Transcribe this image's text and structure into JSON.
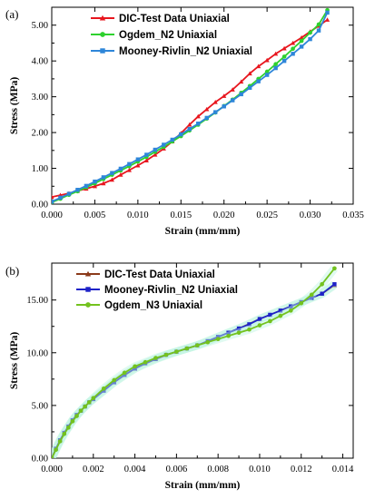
{
  "chart_data": [
    {
      "type": "line",
      "panel_label": "(a)",
      "xlabel": "Strain (mm/mm)",
      "ylabel": "Stress (MPa)",
      "xlim": [
        0,
        0.035
      ],
      "ylim": [
        0,
        5.5
      ],
      "xticks": [
        0,
        0.005,
        0.01,
        0.015,
        0.02,
        0.025,
        0.03,
        0.035
      ],
      "xtick_labels": [
        "0.000",
        "0.005",
        "0.010",
        "0.015",
        "0.020",
        "0.025",
        "0.030",
        "0.035"
      ],
      "yticks": [
        0,
        1,
        2,
        3,
        4,
        5
      ],
      "ytick_labels": [
        "0.00",
        "1.00",
        "2.00",
        "3.00",
        "4.00",
        "5.00"
      ],
      "legend_position": "top-left",
      "grid": false,
      "series": [
        {
          "name": "DIC-Test Data Uniaxial",
          "color": "#e8161e",
          "marker": "triangle",
          "x": [
            0.0,
            0.001,
            0.002,
            0.003,
            0.004,
            0.005,
            0.006,
            0.007,
            0.008,
            0.009,
            0.01,
            0.011,
            0.012,
            0.013,
            0.014,
            0.015,
            0.016,
            0.017,
            0.018,
            0.019,
            0.02,
            0.021,
            0.022,
            0.023,
            0.024,
            0.025,
            0.026,
            0.027,
            0.028,
            0.029,
            0.03,
            0.031,
            0.032
          ],
          "y": [
            0.2,
            0.25,
            0.3,
            0.37,
            0.43,
            0.5,
            0.58,
            0.68,
            0.82,
            0.95,
            1.08,
            1.22,
            1.38,
            1.55,
            1.75,
            1.98,
            2.22,
            2.45,
            2.65,
            2.85,
            3.02,
            3.2,
            3.42,
            3.65,
            3.85,
            4.02,
            4.2,
            4.35,
            4.5,
            4.65,
            4.82,
            4.98,
            5.15
          ]
        },
        {
          "name": "Ogdem_N2 Uniaxial",
          "color": "#2ed12e",
          "marker": "circle",
          "x": [
            0.0,
            0.001,
            0.002,
            0.003,
            0.004,
            0.005,
            0.006,
            0.007,
            0.008,
            0.009,
            0.01,
            0.011,
            0.012,
            0.013,
            0.014,
            0.015,
            0.016,
            0.017,
            0.018,
            0.019,
            0.02,
            0.021,
            0.022,
            0.023,
            0.024,
            0.025,
            0.026,
            0.027,
            0.028,
            0.029,
            0.03,
            0.031,
            0.032
          ],
          "y": [
            0.05,
            0.15,
            0.26,
            0.36,
            0.47,
            0.58,
            0.7,
            0.82,
            0.94,
            1.06,
            1.19,
            1.32,
            1.46,
            1.6,
            1.75,
            1.9,
            2.06,
            2.22,
            2.39,
            2.56,
            2.74,
            2.92,
            3.11,
            3.3,
            3.5,
            3.7,
            3.91,
            4.12,
            4.34,
            4.56,
            4.79,
            5.02,
            5.42
          ]
        },
        {
          "name": "Mooney-Rivlin_N2 Uniaxial",
          "color": "#2e86d9",
          "marker": "square",
          "x": [
            0.0,
            0.001,
            0.002,
            0.003,
            0.004,
            0.005,
            0.006,
            0.007,
            0.008,
            0.009,
            0.01,
            0.011,
            0.012,
            0.013,
            0.014,
            0.015,
            0.016,
            0.017,
            0.018,
            0.019,
            0.02,
            0.021,
            0.022,
            0.023,
            0.024,
            0.025,
            0.026,
            0.027,
            0.028,
            0.029,
            0.03,
            0.031,
            0.032
          ],
          "y": [
            0.07,
            0.18,
            0.29,
            0.4,
            0.51,
            0.63,
            0.75,
            0.87,
            0.99,
            1.12,
            1.25,
            1.38,
            1.52,
            1.66,
            1.8,
            1.95,
            2.1,
            2.25,
            2.41,
            2.57,
            2.73,
            2.9,
            3.07,
            3.25,
            3.43,
            3.61,
            3.8,
            4.0,
            4.2,
            4.4,
            4.61,
            4.85,
            5.35
          ]
        }
      ]
    },
    {
      "type": "line",
      "panel_label": "(b)",
      "xlabel": "Strain (mm/mm)",
      "ylabel": "Stress (MPa)",
      "xlim": [
        0,
        0.0145
      ],
      "ylim": [
        0,
        18.5
      ],
      "xticks": [
        0,
        0.002,
        0.004,
        0.006,
        0.008,
        0.01,
        0.012,
        0.014
      ],
      "xtick_labels": [
        "0.000",
        "0.002",
        "0.004",
        "0.006",
        "0.008",
        "0.010",
        "0.012",
        "0.014"
      ],
      "yticks": [
        0,
        5,
        10,
        15
      ],
      "ytick_labels": [
        "0.00",
        "5.00",
        "10.00",
        "15.00"
      ],
      "legend_position": "top-left",
      "grid": false,
      "series": [
        {
          "name": "DIC-Test Data Uniaxial",
          "color": "#8b3a1a",
          "marker": "triangle",
          "x": [
            0.0,
            0.0002,
            0.0004,
            0.0006,
            0.0008,
            0.001,
            0.0012,
            0.0014,
            0.0016,
            0.0018,
            0.002,
            0.003,
            0.004,
            0.005,
            0.006,
            0.007,
            0.008,
            0.009,
            0.01,
            0.011,
            0.012,
            0.013,
            0.0136
          ],
          "y": [
            0.0,
            0.9,
            1.7,
            2.4,
            3.0,
            3.6,
            4.1,
            4.5,
            4.9,
            5.3,
            5.6,
            7.2,
            8.5,
            9.4,
            10.1,
            10.7,
            11.5,
            12.3,
            13.2,
            14.0,
            14.8,
            15.6,
            16.4
          ]
        },
        {
          "name": "Mooney-Rivlin_N2 Uniaxial",
          "color": "#1e22c8",
          "marker": "square",
          "x": [
            0.0,
            0.0002,
            0.0004,
            0.0006,
            0.0008,
            0.001,
            0.0012,
            0.0014,
            0.0016,
            0.0018,
            0.002,
            0.0025,
            0.003,
            0.0035,
            0.004,
            0.0045,
            0.005,
            0.0055,
            0.006,
            0.0065,
            0.007,
            0.0075,
            0.008,
            0.0085,
            0.009,
            0.0095,
            0.01,
            0.0105,
            0.011,
            0.0115,
            0.012,
            0.0125,
            0.013,
            0.0136
          ],
          "y": [
            0.0,
            0.9,
            1.7,
            2.4,
            3.0,
            3.6,
            4.1,
            4.5,
            4.9,
            5.3,
            5.6,
            6.4,
            7.2,
            7.9,
            8.5,
            9.0,
            9.4,
            9.8,
            10.1,
            10.4,
            10.7,
            11.1,
            11.5,
            11.9,
            12.3,
            12.7,
            13.2,
            13.6,
            14.0,
            14.4,
            14.8,
            15.2,
            15.6,
            16.5
          ]
        },
        {
          "name": "Ogdem_N3 Uniaxial",
          "color": "#73c21e",
          "marker": "circle",
          "x": [
            0.0,
            0.0002,
            0.0004,
            0.0006,
            0.0008,
            0.001,
            0.0012,
            0.0014,
            0.0016,
            0.0018,
            0.002,
            0.0025,
            0.003,
            0.0035,
            0.004,
            0.0045,
            0.005,
            0.0055,
            0.006,
            0.0065,
            0.007,
            0.0075,
            0.008,
            0.0085,
            0.009,
            0.0095,
            0.01,
            0.0105,
            0.011,
            0.0115,
            0.012,
            0.0125,
            0.013,
            0.0136
          ],
          "y": [
            0.0,
            0.8,
            1.6,
            2.3,
            2.9,
            3.5,
            4.0,
            4.5,
            4.9,
            5.3,
            5.7,
            6.6,
            7.4,
            8.1,
            8.7,
            9.1,
            9.5,
            9.8,
            10.1,
            10.4,
            10.7,
            11.0,
            11.3,
            11.6,
            11.9,
            12.2,
            12.6,
            13.0,
            13.5,
            14.0,
            14.7,
            15.5,
            16.5,
            18.0
          ]
        }
      ]
    }
  ]
}
